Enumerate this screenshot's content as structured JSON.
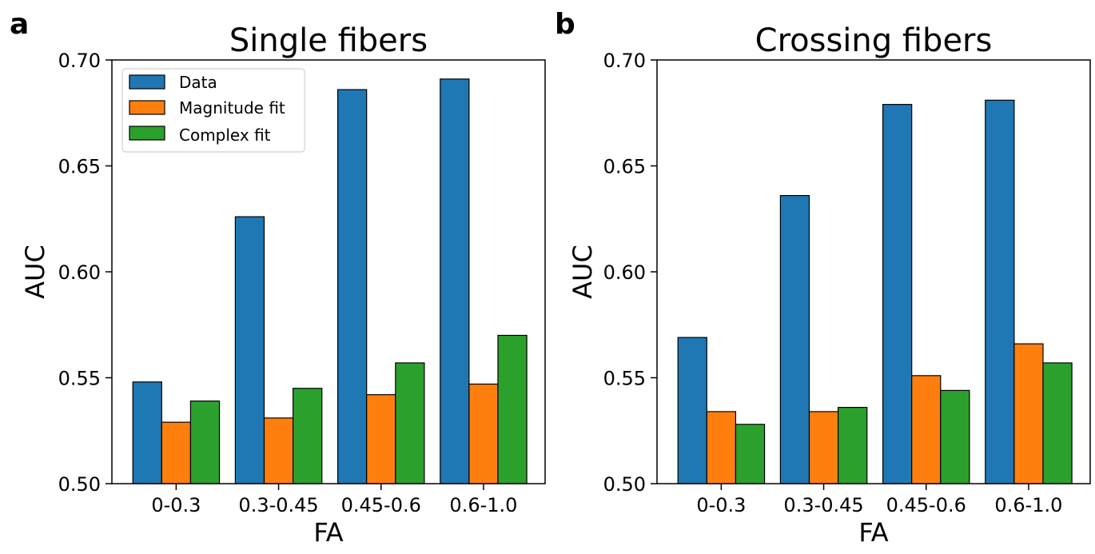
{
  "colors": {
    "data": "#1f77b4",
    "magnitude": "#ff7f0e",
    "complex": "#2ca02c"
  },
  "chart_data": [
    {
      "panel_letter": "a",
      "type": "bar",
      "title": "Single fibers",
      "xlabel": "FA",
      "ylabel": "AUC",
      "ylim": [
        0.5,
        0.7
      ],
      "yticks": [
        "0.50",
        "0.55",
        "0.60",
        "0.65",
        "0.70"
      ],
      "categories": [
        "0-0.3",
        "0.3-0.45",
        "0.45-0.6",
        "0.6-1.0"
      ],
      "legend": {
        "placement": "top-left",
        "entries": [
          "Data",
          "Magnitude fit",
          "Complex fit"
        ]
      },
      "series": [
        {
          "name": "Data",
          "values": [
            0.548,
            0.626,
            0.686,
            0.691
          ]
        },
        {
          "name": "Magnitude fit",
          "values": [
            0.529,
            0.531,
            0.542,
            0.547
          ]
        },
        {
          "name": "Complex fit",
          "values": [
            0.539,
            0.545,
            0.557,
            0.57
          ]
        }
      ]
    },
    {
      "panel_letter": "b",
      "type": "bar",
      "title": "Crossing fibers",
      "xlabel": "FA",
      "ylabel": "AUC",
      "ylim": [
        0.5,
        0.7
      ],
      "yticks": [
        "0.50",
        "0.55",
        "0.60",
        "0.65",
        "0.70"
      ],
      "categories": [
        "0-0.3",
        "0.3-0.45",
        "0.45-0.6",
        "0.6-1.0"
      ],
      "series": [
        {
          "name": "Data",
          "values": [
            0.569,
            0.636,
            0.679,
            0.681
          ]
        },
        {
          "name": "Magnitude fit",
          "values": [
            0.534,
            0.534,
            0.551,
            0.566
          ]
        },
        {
          "name": "Complex fit",
          "values": [
            0.528,
            0.536,
            0.544,
            0.557
          ]
        }
      ]
    }
  ]
}
